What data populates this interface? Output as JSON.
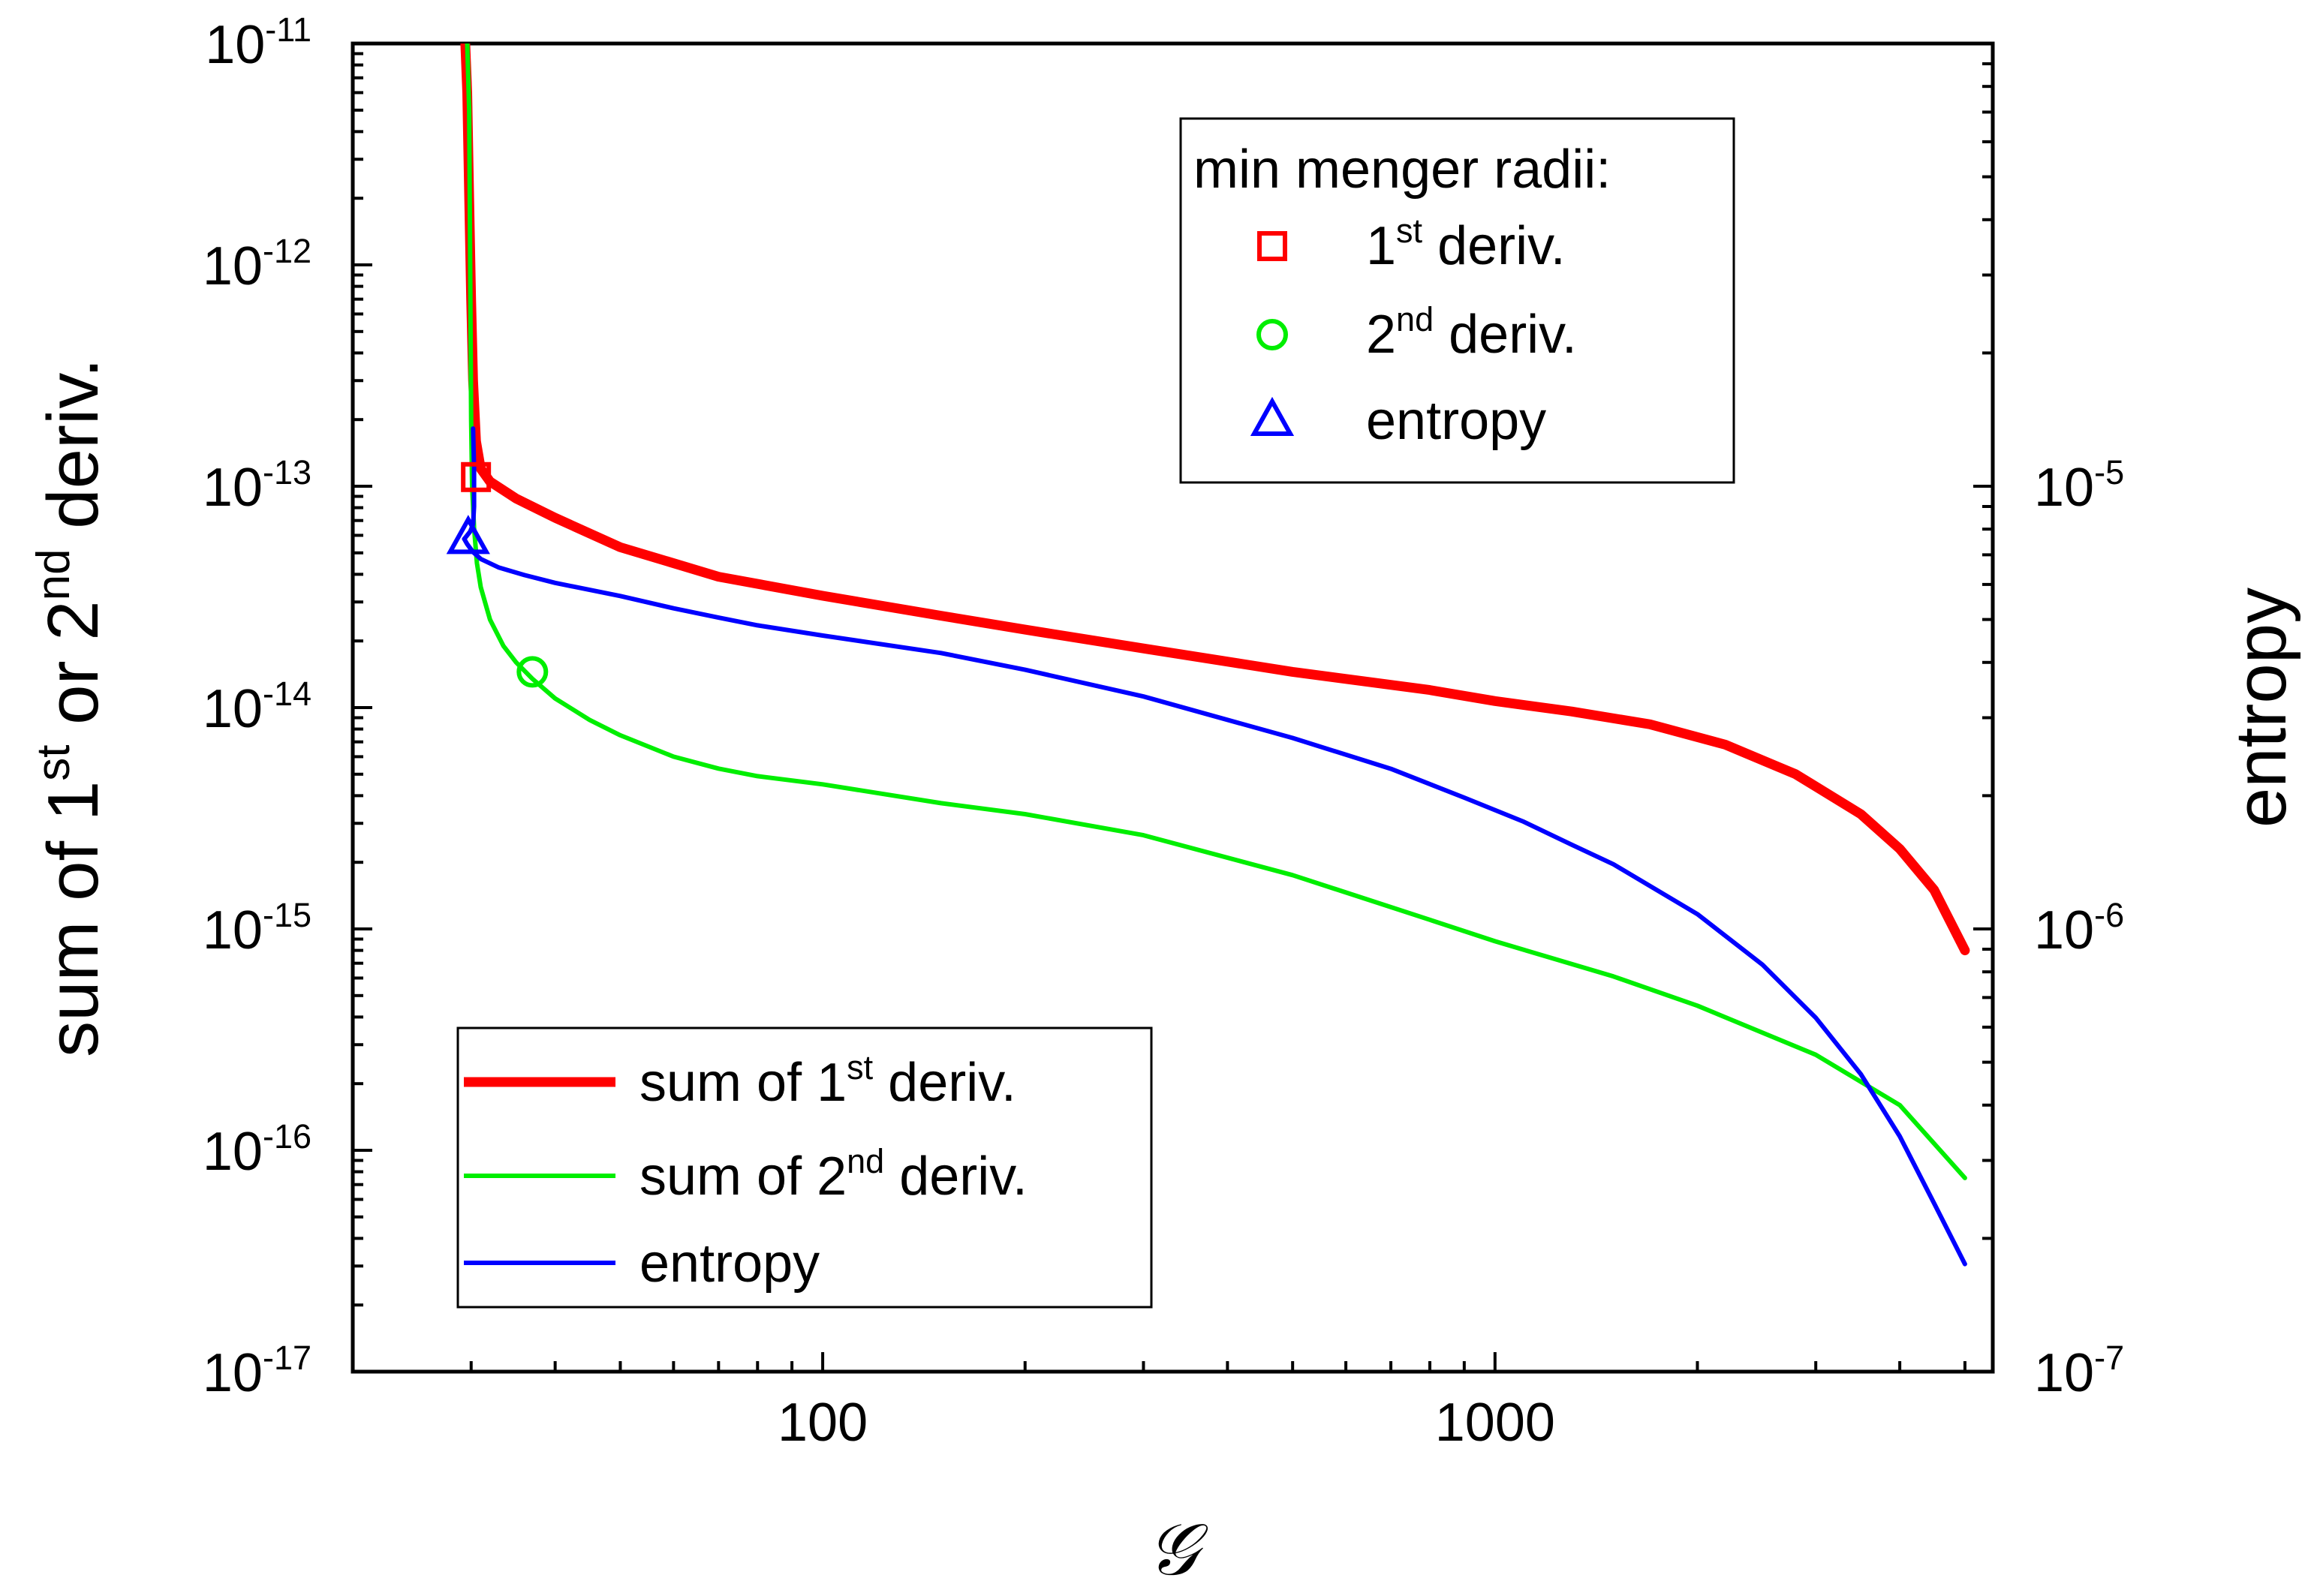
{
  "chart_data": {
    "type": "line",
    "xlabel": "𝒢",
    "ylabel_left": {
      "pre": "sum of 1",
      "sup1": "st",
      "mid": " or 2",
      "sup2": "nd",
      "post": " deriv."
    },
    "ylabel_right": "entropy",
    "x_scale": "log",
    "y_left_scale": "log",
    "y_right_scale": "log",
    "xlim": [
      20,
      5500
    ],
    "ylim_left": [
      1e-17,
      1e-11
    ],
    "ylim_right": [
      1e-07,
      0.0001
    ],
    "x_ticks": [
      {
        "value": 100,
        "label": "100"
      },
      {
        "value": 1000,
        "label": "1000"
      }
    ],
    "y_left_ticks": [
      {
        "value": 1e-11,
        "base": "10",
        "exp": "-11"
      },
      {
        "value": 1e-12,
        "base": "10",
        "exp": "-12"
      },
      {
        "value": 1e-13,
        "base": "10",
        "exp": "-13"
      },
      {
        "value": 1e-14,
        "base": "10",
        "exp": "-14"
      },
      {
        "value": 1e-15,
        "base": "10",
        "exp": "-15"
      },
      {
        "value": 1e-16,
        "base": "10",
        "exp": "-16"
      },
      {
        "value": 1e-17,
        "base": "10",
        "exp": "-17"
      }
    ],
    "y_right_ticks": [
      {
        "value": 1e-05,
        "base": "10",
        "exp": "-5"
      },
      {
        "value": 1e-06,
        "base": "10",
        "exp": "-6"
      },
      {
        "value": 1e-07,
        "base": "10",
        "exp": "-7"
      }
    ],
    "series": [
      {
        "name": "sum of 1st deriv.",
        "legend": {
          "pre": "sum of 1",
          "sup": "st",
          "post": " deriv."
        },
        "color": "#ff0000",
        "axis": "left",
        "width": 13,
        "x": [
          29.4,
          29.6,
          29.8,
          30.0,
          30.2,
          30.5,
          31,
          32,
          35,
          40,
          50,
          70,
          100,
          150,
          200,
          300,
          500,
          800,
          1000,
          1300,
          1700,
          2200,
          2800,
          3500,
          4000,
          4500,
          5000
        ],
        "y": [
          1e-11,
          6e-12,
          2e-12,
          7e-13,
          3e-13,
          1.6e-13,
          1.2e-13,
          1.05e-13,
          8.8e-14,
          7.2e-14,
          5.3e-14,
          3.9e-14,
          3.2e-14,
          2.6e-14,
          2.25e-14,
          1.85e-14,
          1.45e-14,
          1.2e-14,
          1.07e-14,
          9.6e-15,
          8.4e-15,
          6.8e-15,
          5e-15,
          3.3e-15,
          2.3e-15,
          1.5e-15,
          8e-16
        ]
      },
      {
        "name": "sum of 2nd deriv.",
        "legend": {
          "pre": "sum of 2",
          "sup": "nd",
          "post": " deriv."
        },
        "color": "#00ee00",
        "axis": "left",
        "width": 6,
        "x": [
          29.6,
          29.8,
          29.9,
          30.0,
          30.1,
          30.3,
          30.6,
          31,
          32,
          33.5,
          35,
          37,
          40,
          45,
          50,
          60,
          70,
          80,
          100,
          150,
          200,
          300,
          500,
          800,
          1000,
          1500,
          2000,
          3000,
          4000,
          5000
        ],
        "y": [
          1e-11,
          5e-12,
          1e-12,
          2e-13,
          1e-13,
          6.5e-14,
          4.5e-14,
          3.5e-14,
          2.5e-14,
          1.9e-14,
          1.6e-14,
          1.35e-14,
          1.1e-14,
          8.8e-15,
          7.5e-15,
          6e-15,
          5.3e-15,
          4.9e-15,
          4.5e-15,
          3.7e-15,
          3.3e-15,
          2.65e-15,
          1.75e-15,
          1.1e-15,
          8.8e-16,
          6.1e-16,
          4.5e-16,
          2.7e-16,
          1.6e-16,
          7.5e-17
        ]
      },
      {
        "name": "entropy",
        "legend": {
          "pre": "entropy",
          "sup": "",
          "post": ""
        },
        "color": "#0000ff",
        "axis": "right",
        "width": 6,
        "x": [
          30.2,
          30.3,
          30.3,
          30.2,
          29.9,
          29.5,
          29.3,
          29.6,
          30.2,
          31,
          33,
          36,
          40,
          50,
          60,
          70,
          80,
          100,
          150,
          200,
          300,
          500,
          700,
          900,
          1100,
          1300,
          1500,
          2000,
          2500,
          3000,
          3500,
          4000,
          4500,
          5000
        ],
        "y": [
          1.35e-05,
          1.1e-05,
          9e-06,
          8.2e-06,
          7.9e-06,
          7.7e-06,
          7.6e-06,
          7.4e-06,
          7.1e-06,
          6.85e-06,
          6.55e-06,
          6.3e-06,
          6.05e-06,
          5.65e-06,
          5.3e-06,
          5.05e-06,
          4.85e-06,
          4.6e-06,
          4.2e-06,
          3.85e-06,
          3.35e-06,
          2.7e-06,
          2.3e-06,
          1.98e-06,
          1.75e-06,
          1.55e-06,
          1.4e-06,
          1.08e-06,
          8.3e-07,
          6.3e-07,
          4.7e-07,
          3.4e-07,
          2.4e-07,
          1.75e-07
        ]
      }
    ],
    "markers": {
      "title": "min menger radii:",
      "items": [
        {
          "label": {
            "pre": "1",
            "sup": "st",
            "post": " deriv."
          },
          "shape": "square",
          "color": "#ff0000",
          "axis": "left",
          "x": 30.5,
          "y": 1.1e-13
        },
        {
          "label": {
            "pre": "2",
            "sup": "nd",
            "post": " deriv."
          },
          "shape": "circle",
          "color": "#00ee00",
          "axis": "left",
          "x": 37.0,
          "y": 1.45e-14
        },
        {
          "label": {
            "pre": "entropy",
            "sup": "",
            "post": ""
          },
          "shape": "triangle",
          "color": "#0000ff",
          "axis": "right",
          "x": 29.7,
          "y": 7.6e-06
        }
      ]
    },
    "legend_placement": "bottom-left",
    "marker_legend_placement": "top-right",
    "grid": false
  }
}
